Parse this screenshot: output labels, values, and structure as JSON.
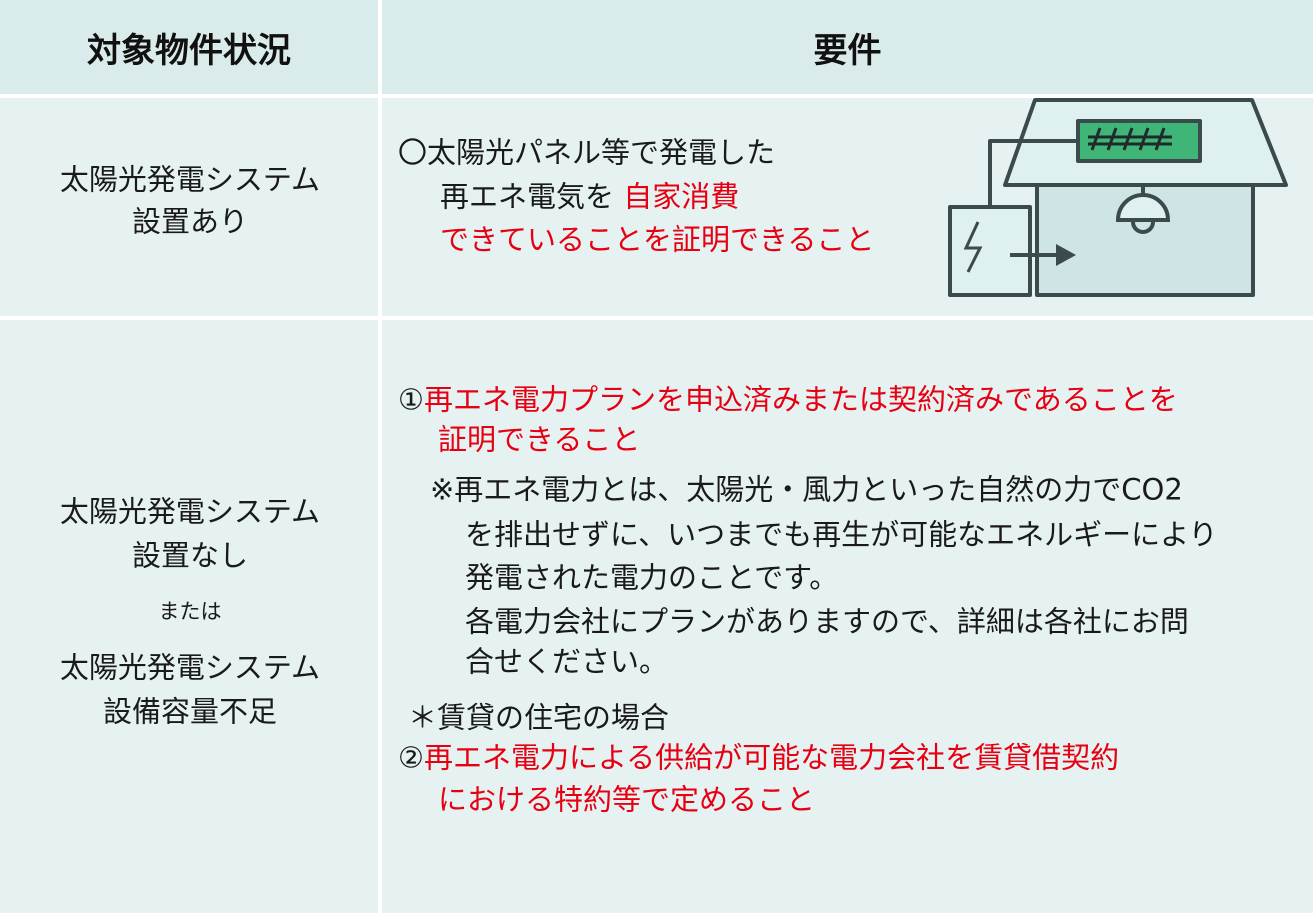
{
  "table": {
    "headers": [
      "対象物件状況",
      "要件"
    ],
    "rows": [
      {
        "situation": [
          "太陽光発電システム",
          "設置あり"
        ],
        "requirements": [
          [
            {
              "text": "〇太陽光パネル等で発電した"
            }
          ],
          [
            {
              "text": "再エネ電気を "
            },
            {
              "text": "自家消費",
              "color": "#e60012"
            }
          ],
          [
            {
              "text": "できていることを証明できること",
              "color": "#e60012"
            }
          ]
        ]
      },
      {
        "situation": [
          "太陽光発電システム",
          "設置なし",
          "または",
          "太陽光発電システム",
          "設備容量不足"
        ],
        "requirements": [
          [
            {
              "text": "①"
            },
            {
              "text": "再エネ電力プランを申込済みまたは契約済みであることを",
              "color": "#e60012"
            }
          ],
          [
            {
              "text": "証明できること",
              "color": "#e60012"
            }
          ],
          [
            {
              "text": "※再エネ電力とは、太陽光・風力といった自然の力でCO2"
            }
          ],
          [
            {
              "text": "を排出せずに、いつまでも再生が可能なエネルギーにより"
            }
          ],
          [
            {
              "text": "発電された電力のことです。"
            }
          ],
          [
            {
              "text": "各電力会社にプランがありますので、詳細は各社にお問"
            }
          ],
          [
            {
              "text": "合せください。"
            }
          ],
          [
            {
              "text": "＊賃貸の住宅の場合"
            }
          ],
          [
            {
              "text": "②"
            },
            {
              "text": "再エネ電力による供給が可能な電力会社を賃貸借契約",
              "color": "#e60012"
            }
          ],
          [
            {
              "text": "における特約等で定めること",
              "color": "#e60012"
            }
          ]
        ]
      }
    ]
  }
}
